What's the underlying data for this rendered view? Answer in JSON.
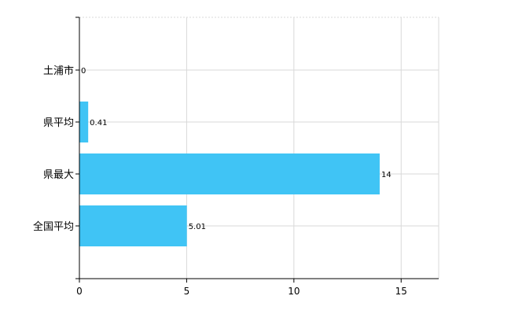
{
  "chart_data": {
    "type": "bar",
    "orientation": "horizontal",
    "categories": [
      "土浦市",
      "県平均",
      "県最大",
      "全国平均"
    ],
    "values": [
      0,
      0.41,
      14,
      5.01
    ],
    "value_labels": [
      "0",
      "0.41",
      "14",
      "5.01"
    ],
    "xlim": [
      0,
      16.75
    ],
    "x_ticks": [
      0,
      5,
      10,
      15
    ],
    "x_tick_labels": [
      "0",
      "5",
      "10",
      "15"
    ],
    "grid": true,
    "legend": "none",
    "colors": {
      "bar": "#40c4f5",
      "grid": "#d9d9d9",
      "axis": "#000000",
      "text": "#000000"
    }
  }
}
